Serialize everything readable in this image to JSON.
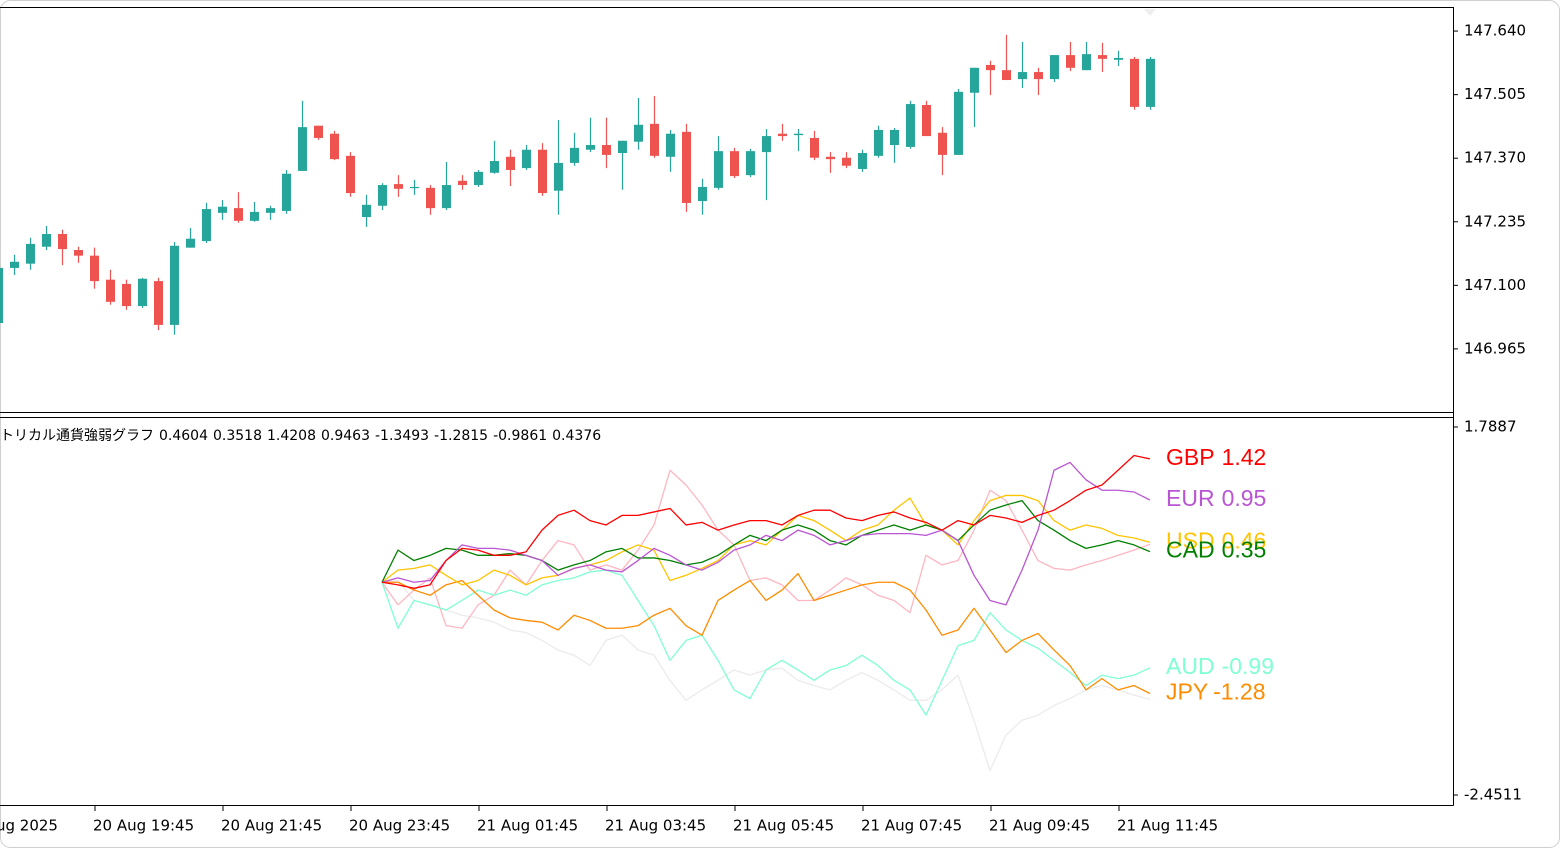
{
  "chart_data": [
    {
      "type": "candlestick",
      "categories": [
        null,
        null,
        null,
        null,
        null,
        null,
        "20 Aug 19:45",
        null,
        null,
        null,
        null,
        null,
        null,
        null,
        "20 Aug 21:45",
        null,
        null,
        null,
        null,
        null,
        null,
        null,
        "20 Aug 23:45",
        null,
        null,
        null,
        null,
        null,
        null,
        null,
        "21 Aug 01:45",
        null,
        null,
        null,
        null,
        null,
        null,
        null,
        "21 Aug 03:45",
        null,
        null,
        null,
        null,
        null,
        null,
        null,
        "21 Aug 05:45",
        null,
        null,
        null,
        null,
        null,
        null,
        null,
        "21 Aug 07:45",
        null,
        null,
        null,
        null,
        null,
        null,
        null,
        "21 Aug 09:45",
        null,
        null,
        null,
        null,
        null,
        null,
        null,
        "21 Aug 11:45",
        null,
        null
      ],
      "x_cut_label": "ug 2025",
      "open": [
        147.02,
        147.137,
        147.146,
        147.182,
        147.209,
        147.175,
        147.163,
        147.112,
        147.103,
        147.056,
        147.109,
        147.016,
        147.18,
        147.194,
        147.254,
        147.264,
        147.237,
        147.254,
        147.258,
        147.343,
        147.439,
        147.422,
        147.375,
        147.245,
        147.269,
        147.315,
        147.307,
        147.307,
        147.264,
        147.322,
        147.313,
        147.339,
        147.373,
        147.349,
        147.388,
        147.301,
        147.36,
        147.388,
        147.398,
        147.381,
        147.405,
        147.443,
        147.373,
        147.426,
        147.279,
        147.307,
        147.385,
        147.334,
        147.383,
        147.422,
        147.419,
        147.413,
        147.373,
        147.371,
        147.347,
        147.375,
        147.398,
        147.394,
        147.483,
        147.424,
        147.377,
        147.509,
        147.568,
        147.557,
        147.538,
        147.553,
        147.538,
        147.589,
        147.557,
        147.589,
        147.579,
        147.581,
        147.479
      ],
      "high": [
        147.143,
        147.165,
        147.201,
        147.226,
        147.218,
        147.182,
        147.18,
        147.133,
        147.112,
        147.116,
        147.116,
        147.192,
        147.222,
        147.275,
        147.281,
        147.298,
        147.277,
        147.269,
        147.345,
        147.492,
        147.439,
        147.428,
        147.383,
        147.292,
        147.317,
        147.334,
        147.324,
        147.313,
        147.362,
        147.334,
        147.345,
        147.407,
        147.388,
        147.398,
        147.402,
        147.451,
        147.424,
        147.456,
        147.456,
        147.407,
        147.498,
        147.502,
        147.43,
        147.443,
        147.326,
        147.417,
        147.392,
        147.39,
        147.432,
        147.443,
        147.432,
        147.428,
        147.383,
        147.383,
        147.388,
        147.439,
        147.434,
        147.492,
        147.492,
        147.436,
        147.517,
        147.562,
        147.577,
        147.632,
        147.617,
        147.562,
        147.589,
        147.617,
        147.617,
        147.615,
        147.598,
        147.585,
        147.585
      ],
      "low": [
        147.014,
        147.122,
        147.133,
        147.175,
        147.143,
        147.148,
        147.093,
        147.059,
        147.048,
        147.052,
        147.005,
        146.995,
        147.18,
        147.19,
        147.239,
        147.233,
        147.235,
        147.239,
        147.252,
        147.343,
        147.409,
        147.366,
        147.288,
        147.224,
        147.26,
        147.288,
        147.292,
        147.25,
        147.26,
        147.303,
        147.309,
        147.337,
        147.311,
        147.345,
        147.29,
        147.25,
        147.354,
        147.383,
        147.349,
        147.303,
        147.388,
        147.371,
        147.341,
        147.256,
        147.25,
        147.303,
        147.328,
        147.33,
        147.281,
        147.407,
        147.385,
        147.366,
        147.339,
        147.349,
        147.341,
        147.371,
        147.36,
        147.39,
        147.417,
        147.334,
        147.377,
        147.436,
        147.504,
        147.536,
        147.519,
        147.504,
        147.532,
        147.555,
        147.557,
        147.553,
        147.566,
        147.473,
        147.473
      ],
      "close": [
        147.137,
        147.15,
        147.188,
        147.209,
        147.177,
        147.163,
        147.109,
        147.065,
        147.056,
        147.114,
        147.016,
        147.184,
        147.199,
        147.262,
        147.267,
        147.237,
        147.256,
        147.264,
        147.337,
        147.436,
        147.413,
        147.368,
        147.296,
        147.271,
        147.313,
        147.305,
        147.309,
        147.264,
        147.313,
        147.313,
        147.341,
        147.364,
        147.345,
        147.388,
        147.296,
        147.36,
        147.392,
        147.398,
        147.377,
        147.407,
        147.441,
        147.375,
        147.422,
        147.275,
        147.309,
        147.385,
        147.332,
        147.385,
        147.417,
        147.417,
        147.422,
        147.371,
        147.368,
        147.354,
        147.381,
        147.43,
        147.43,
        147.485,
        147.417,
        147.377,
        147.511,
        147.562,
        147.557,
        147.536,
        147.553,
        147.538,
        147.589,
        147.562,
        147.591,
        147.581,
        147.583,
        147.479,
        147.581
      ],
      "up_color": "#26a69a",
      "down_color": "#ef5350",
      "ylim": [
        146.831,
        147.689
      ],
      "yticks": [
        {
          "value": 147.64,
          "label": "147.640"
        },
        147.505,
        {
          "value": 147.37,
          "label": "147.370"
        },
        147.235,
        {
          "value": 147.1,
          "label": "147.100"
        },
        146.965
      ]
    },
    {
      "type": "line",
      "title": "トリカル通貨強弱グラフ",
      "title_values": [
        0.4604,
        0.3518,
        1.4208,
        0.9463,
        -1.3493,
        -1.2815,
        -0.9861,
        0.4376
      ],
      "ylim": [
        -2.566,
        1.892
      ],
      "yticks": [
        1.7887,
        -2.4511
      ],
      "series": [
        {
          "color": "#ebebeb",
          "values": [
            null,
            null,
            null,
            null,
            null,
            null,
            null,
            null,
            null,
            null,
            null,
            null,
            null,
            null,
            null,
            null,
            null,
            null,
            null,
            null,
            null,
            null,
            null,
            null,
            0,
            0.02,
            -0.21,
            -0.26,
            -0.32,
            -0.38,
            -0.41,
            -0.46,
            -0.55,
            -0.58,
            -0.67,
            -0.78,
            -0.84,
            -0.96,
            -0.67,
            -0.61,
            -0.78,
            -0.84,
            -1.13,
            -1.36,
            -1.24,
            -1.13,
            -1.01,
            -1.07,
            -1.01,
            -0.99,
            -1.13,
            -1.19,
            -1.24,
            -1.13,
            -1.04,
            -1.13,
            -1.24,
            -1.36,
            -1.36,
            -1.24,
            -1.07,
            -1.59,
            -2.17,
            -1.76,
            -1.59,
            -1.53,
            -1.42,
            -1.34,
            -1.24,
            -1.19,
            -1.24,
            -1.3,
            -1.3493
          ]
        },
        {
          "color": "#ffb6c1",
          "values": [
            null,
            null,
            null,
            null,
            null,
            null,
            null,
            null,
            null,
            null,
            null,
            null,
            null,
            null,
            null,
            null,
            null,
            null,
            null,
            null,
            null,
            null,
            null,
            null,
            0,
            -0.26,
            -0.09,
            0.05,
            -0.5,
            -0.53,
            -0.26,
            -0.15,
            0.14,
            -0.03,
            0.25,
            0.48,
            0.43,
            0.14,
            0.2,
            0.14,
            0.37,
            0.66,
            1.29,
            1.12,
            0.89,
            0.6,
            0.43,
            0.02,
            0.05,
            -0.03,
            -0.21,
            -0.21,
            -0.09,
            0.05,
            -0.03,
            -0.15,
            -0.21,
            -0.35,
            0.31,
            0.2,
            0.25,
            0.6,
            1.06,
            0.94,
            0.6,
            0.25,
            0.16,
            0.14,
            0.2,
            0.25,
            0.31,
            0.37,
            0.4376
          ]
        },
        {
          "name": "AUD",
          "value_label": "-0.99",
          "color": "#7fffd4",
          "values": [
            null,
            null,
            null,
            null,
            null,
            null,
            null,
            null,
            null,
            null,
            null,
            null,
            null,
            null,
            null,
            null,
            null,
            null,
            null,
            null,
            null,
            null,
            null,
            null,
            0,
            -0.53,
            -0.21,
            -0.26,
            -0.32,
            -0.21,
            -0.09,
            -0.15,
            -0.09,
            -0.15,
            -0.03,
            0.02,
            0.05,
            0.12,
            0.14,
            0.08,
            -0.21,
            -0.5,
            -0.9,
            -0.67,
            -0.61,
            -0.9,
            -1.24,
            -1.34,
            -1.01,
            -0.9,
            -1.01,
            -1.13,
            -1.01,
            -0.96,
            -0.84,
            -0.96,
            -1.13,
            -1.24,
            -1.53,
            -1.13,
            -0.73,
            -0.67,
            -0.35,
            -0.55,
            -0.67,
            -0.76,
            -0.9,
            -1.04,
            -1.19,
            -1.07,
            -1.11,
            -1.07,
            -0.9861
          ]
        },
        {
          "name": "JPY",
          "value_label": "-1.28",
          "color": "#ff8c00",
          "values": [
            null,
            null,
            null,
            null,
            null,
            null,
            null,
            null,
            null,
            null,
            null,
            null,
            null,
            null,
            null,
            null,
            null,
            null,
            null,
            null,
            null,
            null,
            null,
            null,
            0,
            0,
            -0.09,
            -0.15,
            -0.03,
            0.02,
            -0.15,
            -0.32,
            -0.41,
            -0.44,
            -0.46,
            -0.55,
            -0.38,
            -0.44,
            -0.53,
            -0.53,
            -0.5,
            -0.38,
            -0.3,
            -0.5,
            -0.61,
            -0.21,
            -0.09,
            0.02,
            -0.21,
            -0.09,
            0.1,
            -0.21,
            -0.15,
            -0.09,
            -0.03,
            0,
            0,
            -0.09,
            -0.32,
            -0.61,
            -0.55,
            -0.3,
            -0.55,
            -0.81,
            -0.67,
            -0.59,
            -0.78,
            -0.96,
            -1.24,
            -1.11,
            -1.24,
            -1.19,
            -1.2815
          ]
        },
        {
          "name": "USD",
          "value_label": "0.46",
          "color": "#ffc400",
          "values": [
            null,
            null,
            null,
            null,
            null,
            null,
            null,
            null,
            null,
            null,
            null,
            null,
            null,
            null,
            null,
            null,
            null,
            null,
            null,
            null,
            null,
            null,
            null,
            null,
            0,
            0.14,
            0.16,
            0.2,
            0.08,
            -0.03,
            0.02,
            0.14,
            0.08,
            -0.03,
            0.05,
            0.08,
            0.16,
            0.2,
            0.25,
            0.35,
            0.43,
            0.37,
            0.02,
            0.08,
            0.16,
            0.25,
            0.43,
            0.48,
            0.43,
            0.6,
            0.77,
            0.71,
            0.6,
            0.48,
            0.6,
            0.66,
            0.83,
            0.97,
            0.66,
            0.6,
            0.43,
            0.71,
            0.94,
            1.0,
            1.0,
            0.94,
            0.71,
            0.6,
            0.66,
            0.62,
            0.54,
            0.51,
            0.4604
          ]
        },
        {
          "name": "CAD",
          "value_label": "0.35",
          "color": "#008000",
          "values": [
            null,
            null,
            null,
            null,
            null,
            null,
            null,
            null,
            null,
            null,
            null,
            null,
            null,
            null,
            null,
            null,
            null,
            null,
            null,
            null,
            null,
            null,
            null,
            null,
            0,
            0.37,
            0.25,
            0.31,
            0.39,
            0.37,
            0.31,
            0.31,
            0.33,
            0.31,
            0.25,
            0.14,
            0.2,
            0.25,
            0.35,
            0.39,
            0.28,
            0.28,
            0.25,
            0.2,
            0.23,
            0.31,
            0.43,
            0.54,
            0.48,
            0.6,
            0.66,
            0.6,
            0.48,
            0.43,
            0.54,
            0.6,
            0.66,
            0.6,
            0.66,
            0.6,
            0.48,
            0.66,
            0.83,
            0.89,
            0.94,
            0.71,
            0.6,
            0.48,
            0.39,
            0.43,
            0.48,
            0.43,
            0.3518
          ]
        },
        {
          "name": "EUR",
          "value_label": "0.95",
          "color": "#ba55d3",
          "values": [
            null,
            null,
            null,
            null,
            null,
            null,
            null,
            null,
            null,
            null,
            null,
            null,
            null,
            null,
            null,
            null,
            null,
            null,
            null,
            null,
            null,
            null,
            null,
            null,
            0,
            0.05,
            0,
            0.02,
            0.25,
            0.43,
            0.39,
            0.39,
            0.37,
            0.31,
            0.25,
            0.08,
            0.16,
            0.2,
            0.14,
            0.12,
            0.25,
            0.39,
            0.31,
            0.2,
            0.14,
            0.23,
            0.37,
            0.43,
            0.54,
            0.48,
            0.6,
            0.54,
            0.43,
            0.48,
            0.54,
            0.56,
            0.56,
            0.56,
            0.54,
            0.6,
            0.48,
            0.08,
            -0.21,
            -0.26,
            0.14,
            0.6,
            1.29,
            1.38,
            1.18,
            1.06,
            1.06,
            1.04,
            0.9463
          ]
        },
        {
          "name": "GBP",
          "value_label": "1.42",
          "color": "#ff0000",
          "values": [
            null,
            null,
            null,
            null,
            null,
            null,
            null,
            null,
            null,
            null,
            null,
            null,
            null,
            null,
            null,
            null,
            null,
            null,
            null,
            null,
            null,
            null,
            null,
            null,
            0,
            -0.03,
            -0.07,
            -0.03,
            0.25,
            0.39,
            0.37,
            0.31,
            0.31,
            0.35,
            0.6,
            0.77,
            0.83,
            0.71,
            0.66,
            0.77,
            0.77,
            0.81,
            0.85,
            0.66,
            0.69,
            0.6,
            0.66,
            0.71,
            0.71,
            0.66,
            0.77,
            0.83,
            0.83,
            0.74,
            0.71,
            0.77,
            0.81,
            0.74,
            0.69,
            0.6,
            0.71,
            0.66,
            0.77,
            0.74,
            0.69,
            0.77,
            0.83,
            0.94,
            1.06,
            1.12,
            1.29,
            1.46,
            1.4208
          ]
        }
      ]
    }
  ]
}
